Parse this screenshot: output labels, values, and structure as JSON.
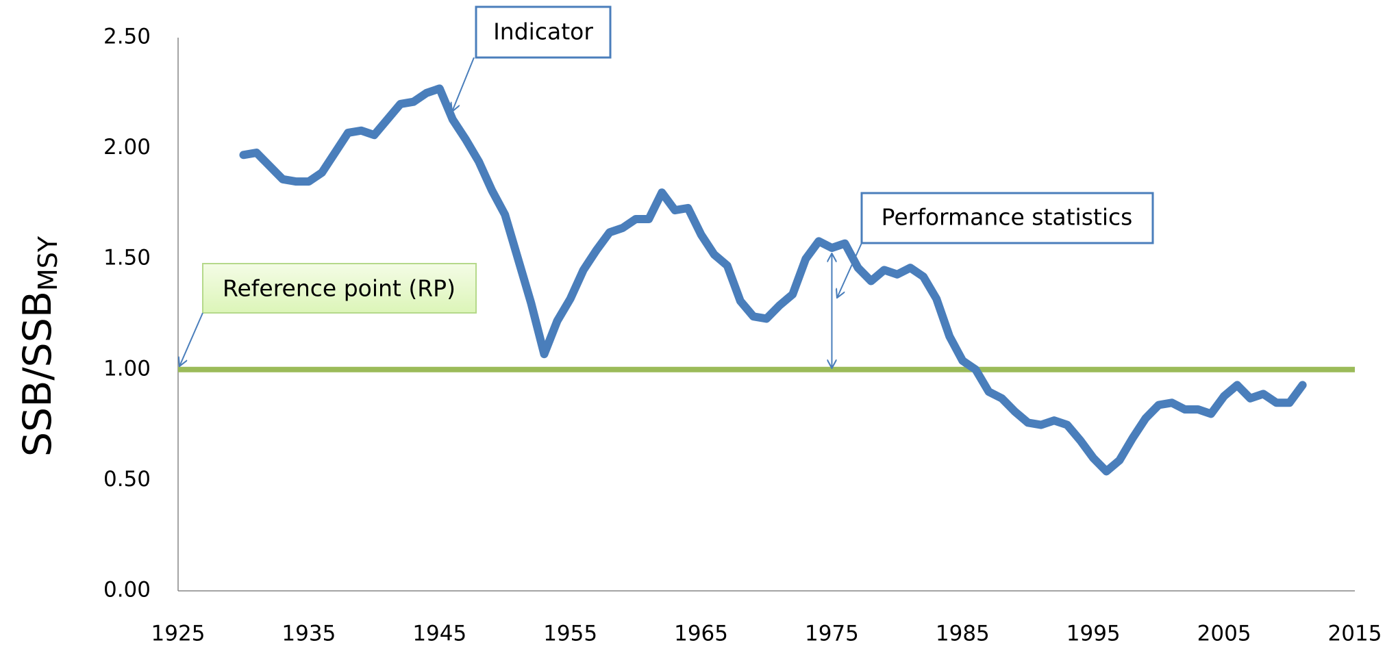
{
  "chart_data": {
    "type": "line",
    "y_label": {
      "main": "SSB/SSB",
      "subscript": "MSY"
    },
    "x": [
      1930,
      1931,
      1932,
      1933,
      1934,
      1935,
      1936,
      1937,
      1938,
      1939,
      1940,
      1941,
      1942,
      1943,
      1944,
      1945,
      1946,
      1947,
      1948,
      1949,
      1950,
      1951,
      1952,
      1953,
      1954,
      1955,
      1956,
      1957,
      1958,
      1959,
      1960,
      1961,
      1962,
      1963,
      1964,
      1965,
      1966,
      1967,
      1968,
      1969,
      1970,
      1971,
      1972,
      1973,
      1974,
      1975,
      1976,
      1977,
      1978,
      1979,
      1980,
      1981,
      1982,
      1983,
      1984,
      1985,
      1986,
      1987,
      1988,
      1989,
      1990,
      1991,
      1992,
      1993,
      1994,
      1995,
      1996,
      1997,
      1998,
      1999,
      2000,
      2001,
      2002,
      2003,
      2004,
      2005,
      2006,
      2007,
      2008,
      2009,
      2010,
      2011
    ],
    "series": [
      {
        "color": "#4a7ebb",
        "values": [
          1.97,
          1.98,
          1.92,
          1.86,
          1.85,
          1.85,
          1.89,
          1.98,
          2.07,
          2.08,
          2.06,
          2.13,
          2.2,
          2.21,
          2.25,
          2.27,
          2.13,
          2.04,
          1.94,
          1.81,
          1.7,
          1.5,
          1.3,
          1.07,
          1.22,
          1.32,
          1.45,
          1.54,
          1.62,
          1.64,
          1.68,
          1.68,
          1.8,
          1.72,
          1.73,
          1.61,
          1.52,
          1.47,
          1.31,
          1.24,
          1.23,
          1.29,
          1.34,
          1.5,
          1.58,
          1.55,
          1.57,
          1.46,
          1.4,
          1.45,
          1.43,
          1.46,
          1.42,
          1.32,
          1.15,
          1.04,
          1.0,
          0.9,
          0.87,
          0.81,
          0.76,
          0.75,
          0.77,
          0.75,
          0.68,
          0.6,
          0.54,
          0.59,
          0.69,
          0.78,
          0.84,
          0.85,
          0.82,
          0.82,
          0.8,
          0.88,
          0.93,
          0.87,
          0.89,
          0.85,
          0.85,
          0.93
        ]
      }
    ],
    "reference_line": {
      "value": 1.0,
      "color": "#9bbb59"
    },
    "annotations": [
      "Indicator",
      "Performance statistics",
      "Reference point (RP)"
    ],
    "xlim": [
      1925,
      2015
    ],
    "xticks": [
      1925,
      1935,
      1945,
      1955,
      1965,
      1975,
      1985,
      1995,
      2005,
      2015
    ],
    "ylim": [
      0,
      2.5
    ],
    "yticks": [
      {
        "value": 0,
        "label": "0.00"
      },
      {
        "value": 0.5,
        "label": "0.50"
      },
      {
        "value": 1.0,
        "label": "1.00"
      },
      {
        "value": 1.5,
        "label": "1.50"
      },
      {
        "value": 2.0,
        "label": "2.00"
      },
      {
        "value": 2.5,
        "label": "2.50"
      }
    ],
    "grid": false
  }
}
